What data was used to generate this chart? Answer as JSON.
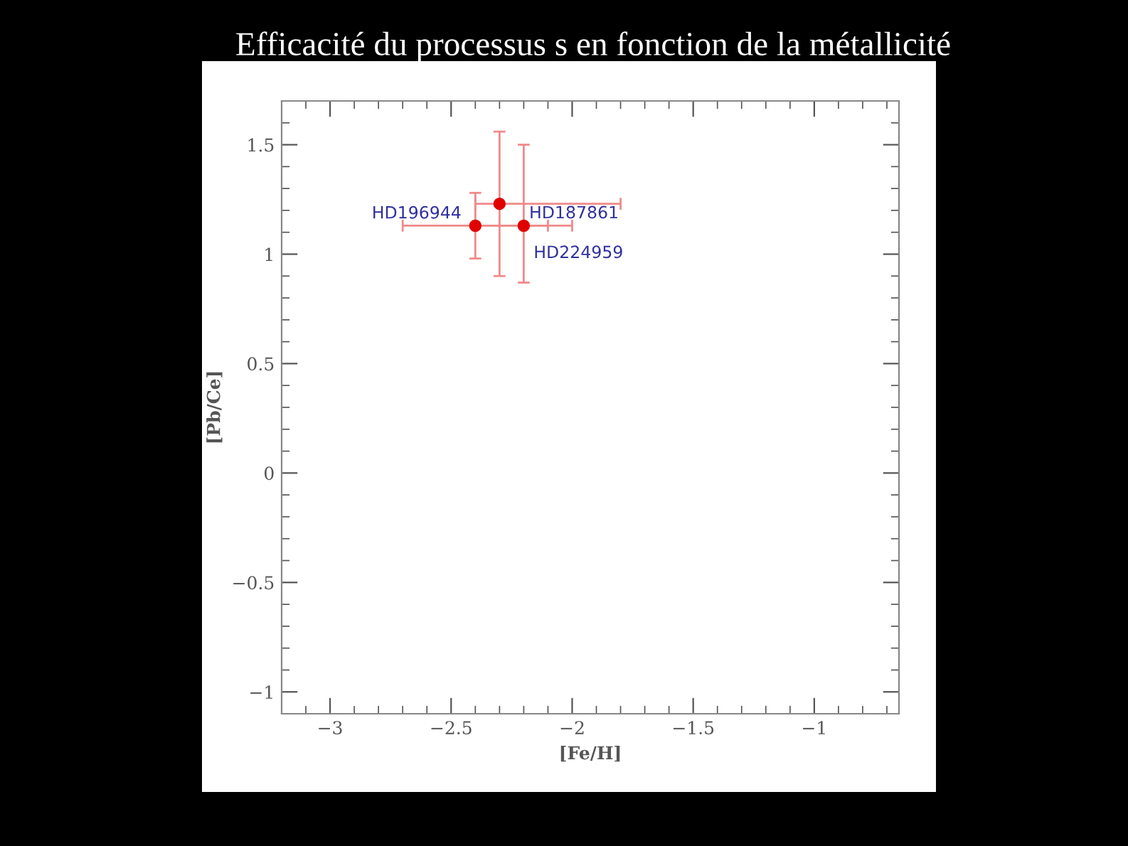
{
  "chart_data": {
    "type": "scatter",
    "title": "Efficacité du processus s en fonction de la métallicité",
    "xlabel": "[Fe/H]",
    "ylabel": "[Pb/Ce]",
    "x": [
      -2.4,
      -2.3,
      -2.2
    ],
    "series": [
      {
        "color": "#e00000",
        "values": [
          1.13,
          1.23,
          1.13
        ],
        "errors": [
          0.15,
          [
            0.9,
            1.56
          ],
          [
            0.87,
            1.5
          ]
        ],
        "xerrors": [
          0.3,
          [
            -2.4,
            -1.8
          ],
          0.2
        ]
      }
    ],
    "marker": "circle",
    "xlim": [
      -3.2,
      -0.65
    ],
    "ylim": [
      -1.1,
      1.7
    ],
    "xticks": [
      {
        "value": -3,
        "label": "−3"
      },
      {
        "value": -2.5,
        "label": "−2.5"
      },
      {
        "value": -2,
        "label": "−2"
      },
      {
        "value": -1.5,
        "label": "−1.5"
      },
      {
        "value": -1,
        "label": "−1"
      }
    ],
    "yticks": [
      {
        "value": -1,
        "label": "−1"
      },
      {
        "value": -0.5,
        "label": "−0.5"
      },
      0,
      0.5,
      1,
      1.5
    ],
    "grid": false,
    "legend": false,
    "annotations": [
      {
        "text": "HD196944",
        "x": -2.4,
        "y": 1.13
      },
      {
        "text": "HD187861",
        "x": -2.3,
        "y": 1.23
      },
      {
        "text": "HD224959",
        "x": -2.2,
        "y": 1.13
      }
    ]
  }
}
